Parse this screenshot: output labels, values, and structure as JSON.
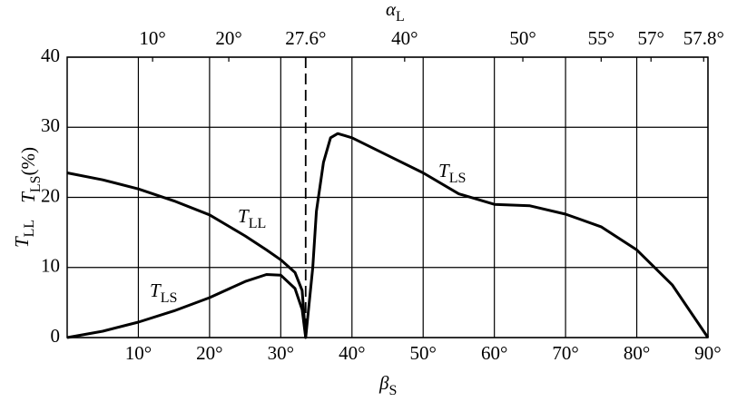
{
  "chart_data": {
    "type": "line",
    "x_label": {
      "symbol": "β",
      "subscript": "S"
    },
    "y_label": [
      {
        "symbol": "T",
        "subscript": "LL"
      },
      {
        "symbol": "T",
        "subscript": "LS",
        "suffix": "(%)"
      }
    ],
    "top_axis": {
      "label": {
        "symbol": "α",
        "subscript": "L"
      },
      "ticks": [
        {
          "label": "10°",
          "beta": 12
        },
        {
          "label": "20°",
          "beta": 22.7
        },
        {
          "label": "27.6°",
          "beta": 33.5
        },
        {
          "label": "40°",
          "beta": 47.4
        },
        {
          "label": "50°",
          "beta": 64
        },
        {
          "label": "55°",
          "beta": 75
        },
        {
          "label": "57°",
          "beta": 82
        },
        {
          "label": "57.8°",
          "beta": 89.4
        }
      ]
    },
    "xlim": [
      0,
      90
    ],
    "ylim": [
      0,
      40
    ],
    "xticks": [
      {
        "value": 10,
        "label": "10°"
      },
      {
        "value": 20,
        "label": "20°"
      },
      {
        "value": 30,
        "label": "30°"
      },
      {
        "value": 40,
        "label": "40°"
      },
      {
        "value": 50,
        "label": "50°"
      },
      {
        "value": 60,
        "label": "60°"
      },
      {
        "value": 70,
        "label": "70°"
      },
      {
        "value": 80,
        "label": "80°"
      },
      {
        "value": 90,
        "label": "90°"
      }
    ],
    "yticks": [
      0,
      10,
      20,
      30,
      40
    ],
    "grid": true,
    "series": [
      {
        "name": "T_LL",
        "color": "#000000",
        "x": [
          0,
          5,
          10,
          15,
          20,
          25,
          28,
          30,
          32,
          33,
          33.5
        ],
        "values": [
          23.5,
          22.5,
          21.2,
          19.5,
          17.5,
          14.5,
          12.5,
          11.1,
          9.3,
          6.7,
          0
        ]
      },
      {
        "name": "T_LS",
        "color": "#000000",
        "x": [
          0,
          5,
          10,
          15,
          20,
          25,
          28,
          30,
          32,
          33,
          33.5,
          34.5,
          35,
          36,
          37,
          38,
          40,
          45,
          50,
          55,
          60,
          65,
          70,
          75,
          80,
          85,
          90
        ],
        "values": [
          0,
          0.9,
          2.2,
          3.8,
          5.7,
          8.0,
          9.0,
          8.9,
          7.0,
          4.0,
          0,
          10,
          18,
          25,
          28.5,
          29.1,
          28.5,
          26,
          23.5,
          20.5,
          19.0,
          18.8,
          17.6,
          15.8,
          12.5,
          7.5,
          0
        ]
      }
    ],
    "annotations": [
      {
        "symbol": "T",
        "subscript": "LL"
      },
      {
        "symbol": "T",
        "subscript": "LS"
      },
      {
        "symbol": "T",
        "subscript": "LS"
      }
    ]
  }
}
